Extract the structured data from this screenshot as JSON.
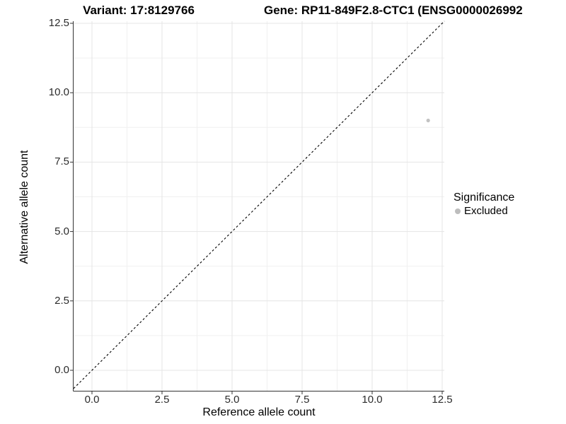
{
  "chart_data": {
    "type": "scatter",
    "title_left": "Variant: 17:8129766",
    "title_right": "Gene: RP11-849F2.8-CTC1 (ENSG0000026992",
    "xlabel": "Reference allele count",
    "ylabel": "Alternative allele count",
    "x_ticks": {
      "values": [
        0,
        2.5,
        5,
        7.5,
        10,
        12.5
      ],
      "labels": [
        "0.0",
        "2.5",
        "5.0",
        "7.5",
        "10.0",
        "12.5"
      ]
    },
    "y_ticks": {
      "values": [
        0,
        2.5,
        5,
        7.5,
        10,
        12.5
      ],
      "labels": [
        "0.0",
        "2.5",
        "5.0",
        "7.5",
        "10.0",
        "12.5"
      ]
    },
    "minor_tick_values": [
      1.25,
      3.75,
      6.25,
      8.75,
      11.25
    ],
    "xlim": [
      -0.66,
      12.58
    ],
    "ylim": [
      -0.74,
      12.6
    ],
    "grid": true,
    "reference_line": {
      "kind": "identity y=x",
      "style": "dashed",
      "color": "#000000"
    },
    "points": [
      {
        "x": 12,
        "y": 9,
        "series": "Excluded"
      }
    ],
    "point_color": "#c2c2c2",
    "legend": {
      "title": "Significance",
      "position": "right",
      "items": [
        {
          "label": "Excluded",
          "color": "#bdbdbd"
        }
      ]
    }
  }
}
